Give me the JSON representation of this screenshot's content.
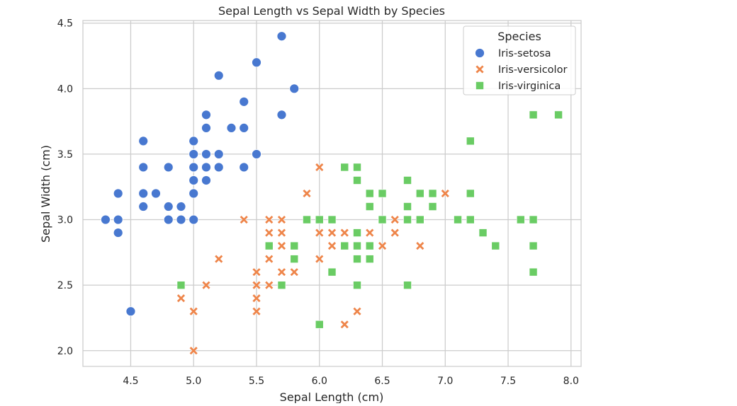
{
  "chart_data": {
    "type": "scatter",
    "title": "Sepal Length vs Sepal Width by Species",
    "xlabel": "Sepal Length (cm)",
    "ylabel": "Sepal Width (cm)",
    "xlim": [
      4.12,
      8.08
    ],
    "ylim": [
      1.88,
      4.52
    ],
    "x_ticks": [
      "4.5",
      "5.0",
      "5.5",
      "6.0",
      "6.5",
      "7.0",
      "7.5",
      "8.0"
    ],
    "y_ticks": [
      "2.0",
      "2.5",
      "3.0",
      "3.5",
      "4.0",
      "4.5"
    ],
    "grid": true,
    "legend": {
      "title": "Species",
      "placement": "top-right"
    },
    "series": [
      {
        "name": "Iris-setosa",
        "marker": "circle",
        "color": "#4878d0",
        "points": [
          [
            5.1,
            3.5
          ],
          [
            4.9,
            3.0
          ],
          [
            4.7,
            3.2
          ],
          [
            4.6,
            3.1
          ],
          [
            5.0,
            3.6
          ],
          [
            5.4,
            3.9
          ],
          [
            4.6,
            3.4
          ],
          [
            5.0,
            3.4
          ],
          [
            4.4,
            2.9
          ],
          [
            4.9,
            3.1
          ],
          [
            5.4,
            3.7
          ],
          [
            4.8,
            3.4
          ],
          [
            4.8,
            3.0
          ],
          [
            4.3,
            3.0
          ],
          [
            5.8,
            4.0
          ],
          [
            5.7,
            4.4
          ],
          [
            5.4,
            3.9
          ],
          [
            5.1,
            3.5
          ],
          [
            5.7,
            3.8
          ],
          [
            5.1,
            3.8
          ],
          [
            5.4,
            3.4
          ],
          [
            5.1,
            3.7
          ],
          [
            4.6,
            3.6
          ],
          [
            5.1,
            3.3
          ],
          [
            4.8,
            3.4
          ],
          [
            5.0,
            3.0
          ],
          [
            5.0,
            3.4
          ],
          [
            5.2,
            3.5
          ],
          [
            5.2,
            3.4
          ],
          [
            4.7,
            3.2
          ],
          [
            4.8,
            3.1
          ],
          [
            5.4,
            3.4
          ],
          [
            5.2,
            4.1
          ],
          [
            5.5,
            4.2
          ],
          [
            4.9,
            3.1
          ],
          [
            5.0,
            3.2
          ],
          [
            5.5,
            3.5
          ],
          [
            4.9,
            3.1
          ],
          [
            4.4,
            3.0
          ],
          [
            5.1,
            3.4
          ],
          [
            5.0,
            3.5
          ],
          [
            4.5,
            2.3
          ],
          [
            4.4,
            3.2
          ],
          [
            5.0,
            3.5
          ],
          [
            5.1,
            3.8
          ],
          [
            4.8,
            3.0
          ],
          [
            5.1,
            3.8
          ],
          [
            4.6,
            3.2
          ],
          [
            5.3,
            3.7
          ],
          [
            5.0,
            3.3
          ]
        ]
      },
      {
        "name": "Iris-versicolor",
        "marker": "x",
        "color": "#ee854a",
        "points": [
          [
            7.0,
            3.2
          ],
          [
            6.4,
            3.2
          ],
          [
            6.9,
            3.1
          ],
          [
            5.5,
            2.3
          ],
          [
            6.5,
            2.8
          ],
          [
            5.7,
            2.8
          ],
          [
            6.3,
            3.3
          ],
          [
            4.9,
            2.4
          ],
          [
            6.6,
            2.9
          ],
          [
            5.2,
            2.7
          ],
          [
            5.0,
            2.0
          ],
          [
            5.9,
            3.0
          ],
          [
            6.0,
            2.2
          ],
          [
            6.1,
            2.9
          ],
          [
            5.6,
            2.9
          ],
          [
            6.7,
            3.1
          ],
          [
            5.6,
            3.0
          ],
          [
            5.8,
            2.7
          ],
          [
            6.2,
            2.2
          ],
          [
            5.6,
            2.5
          ],
          [
            5.9,
            3.2
          ],
          [
            6.1,
            2.8
          ],
          [
            6.3,
            2.5
          ],
          [
            6.1,
            2.8
          ],
          [
            6.4,
            2.9
          ],
          [
            6.6,
            3.0
          ],
          [
            6.8,
            2.8
          ],
          [
            6.7,
            3.0
          ],
          [
            6.0,
            2.9
          ],
          [
            5.7,
            2.6
          ],
          [
            5.5,
            2.4
          ],
          [
            5.5,
            2.4
          ],
          [
            5.8,
            2.7
          ],
          [
            6.0,
            2.7
          ],
          [
            5.4,
            3.0
          ],
          [
            6.0,
            3.4
          ],
          [
            6.7,
            3.1
          ],
          [
            6.3,
            2.3
          ],
          [
            5.6,
            3.0
          ],
          [
            5.5,
            2.5
          ],
          [
            5.5,
            2.6
          ],
          [
            6.1,
            3.0
          ],
          [
            5.8,
            2.6
          ],
          [
            5.0,
            2.3
          ],
          [
            5.6,
            2.7
          ],
          [
            5.7,
            3.0
          ],
          [
            5.7,
            2.9
          ],
          [
            6.2,
            2.9
          ],
          [
            5.1,
            2.5
          ],
          [
            5.7,
            2.8
          ]
        ]
      },
      {
        "name": "Iris-virginica",
        "marker": "square",
        "color": "#6acc64",
        "points": [
          [
            6.3,
            3.3
          ],
          [
            5.8,
            2.7
          ],
          [
            7.1,
            3.0
          ],
          [
            6.3,
            2.9
          ],
          [
            6.5,
            3.0
          ],
          [
            7.6,
            3.0
          ],
          [
            4.9,
            2.5
          ],
          [
            7.3,
            2.9
          ],
          [
            6.7,
            2.5
          ],
          [
            7.2,
            3.6
          ],
          [
            6.5,
            3.2
          ],
          [
            6.4,
            2.7
          ],
          [
            6.8,
            3.0
          ],
          [
            5.7,
            2.5
          ],
          [
            5.8,
            2.8
          ],
          [
            6.4,
            3.2
          ],
          [
            6.5,
            3.0
          ],
          [
            7.7,
            3.8
          ],
          [
            7.7,
            2.6
          ],
          [
            6.0,
            2.2
          ],
          [
            6.9,
            3.2
          ],
          [
            5.6,
            2.8
          ],
          [
            7.7,
            2.8
          ],
          [
            6.3,
            2.7
          ],
          [
            6.7,
            3.3
          ],
          [
            7.2,
            3.2
          ],
          [
            6.2,
            2.8
          ],
          [
            6.1,
            3.0
          ],
          [
            6.4,
            2.8
          ],
          [
            7.2,
            3.0
          ],
          [
            7.4,
            2.8
          ],
          [
            7.9,
            3.8
          ],
          [
            6.4,
            2.8
          ],
          [
            6.3,
            2.8
          ],
          [
            6.1,
            2.6
          ],
          [
            7.7,
            3.0
          ],
          [
            6.3,
            3.4
          ],
          [
            6.4,
            3.1
          ],
          [
            6.0,
            3.0
          ],
          [
            6.9,
            3.1
          ],
          [
            6.7,
            3.1
          ],
          [
            6.9,
            3.1
          ],
          [
            5.8,
            2.7
          ],
          [
            6.8,
            3.2
          ],
          [
            6.7,
            3.3
          ],
          [
            6.7,
            3.0
          ],
          [
            6.3,
            2.5
          ],
          [
            6.5,
            3.0
          ],
          [
            6.2,
            3.4
          ],
          [
            5.9,
            3.0
          ]
        ]
      }
    ]
  }
}
